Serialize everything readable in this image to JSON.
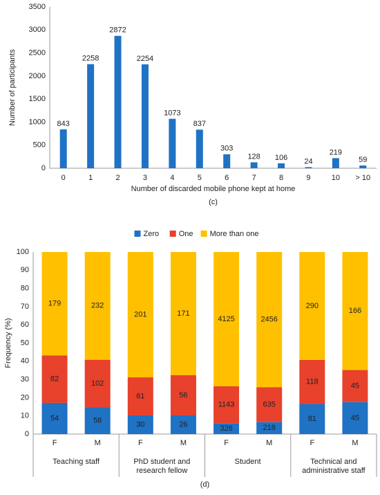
{
  "chart_data": [
    {
      "type": "bar",
      "caption": "(c)",
      "ylabel": "Number of participants",
      "xlabel": "Number of discarded mobile phone kept at home",
      "categories": [
        "0",
        "1",
        "2",
        "3",
        "4",
        "5",
        "6",
        "7",
        "8",
        "9",
        "10",
        "> 10"
      ],
      "values": [
        843,
        2258,
        2872,
        2254,
        1073,
        837,
        303,
        128,
        106,
        24,
        219,
        59
      ],
      "color": "#1f72c4",
      "ylim": [
        0,
        3500
      ],
      "yticks": [
        0,
        500,
        1000,
        1500,
        2000,
        2500,
        3000,
        3500
      ],
      "grid": false
    },
    {
      "type": "stacked_percent_bar",
      "caption": "(d)",
      "ylabel": "Frequency (%)",
      "legend": "top",
      "groups": [
        {
          "label": [
            "Teaching staff"
          ],
          "categories": [
            "F",
            "M"
          ]
        },
        {
          "label": [
            "PhD student and",
            "research fellow"
          ],
          "categories": [
            "F",
            "M"
          ]
        },
        {
          "label": [
            "Student"
          ],
          "categories": [
            "F",
            "M"
          ]
        },
        {
          "label": [
            "Technical and",
            "administrative staff"
          ],
          "categories": [
            "F",
            "M"
          ]
        }
      ],
      "series": [
        {
          "name": "Zero",
          "color": "#1f72c4",
          "values": [
            54,
            58,
            30,
            26,
            326,
            218,
            81,
            45
          ]
        },
        {
          "name": "One",
          "color": "#e8412c",
          "values": [
            82,
            102,
            61,
            56,
            1143,
            635,
            118,
            45
          ]
        },
        {
          "name": "More than one",
          "color": "#ffc000",
          "values": [
            179,
            232,
            201,
            171,
            4125,
            2456,
            290,
            166
          ]
        }
      ],
      "ylim": [
        0,
        100
      ],
      "yticks": [
        0,
        10,
        20,
        30,
        40,
        50,
        60,
        70,
        80,
        90,
        100
      ],
      "grid": false
    }
  ]
}
